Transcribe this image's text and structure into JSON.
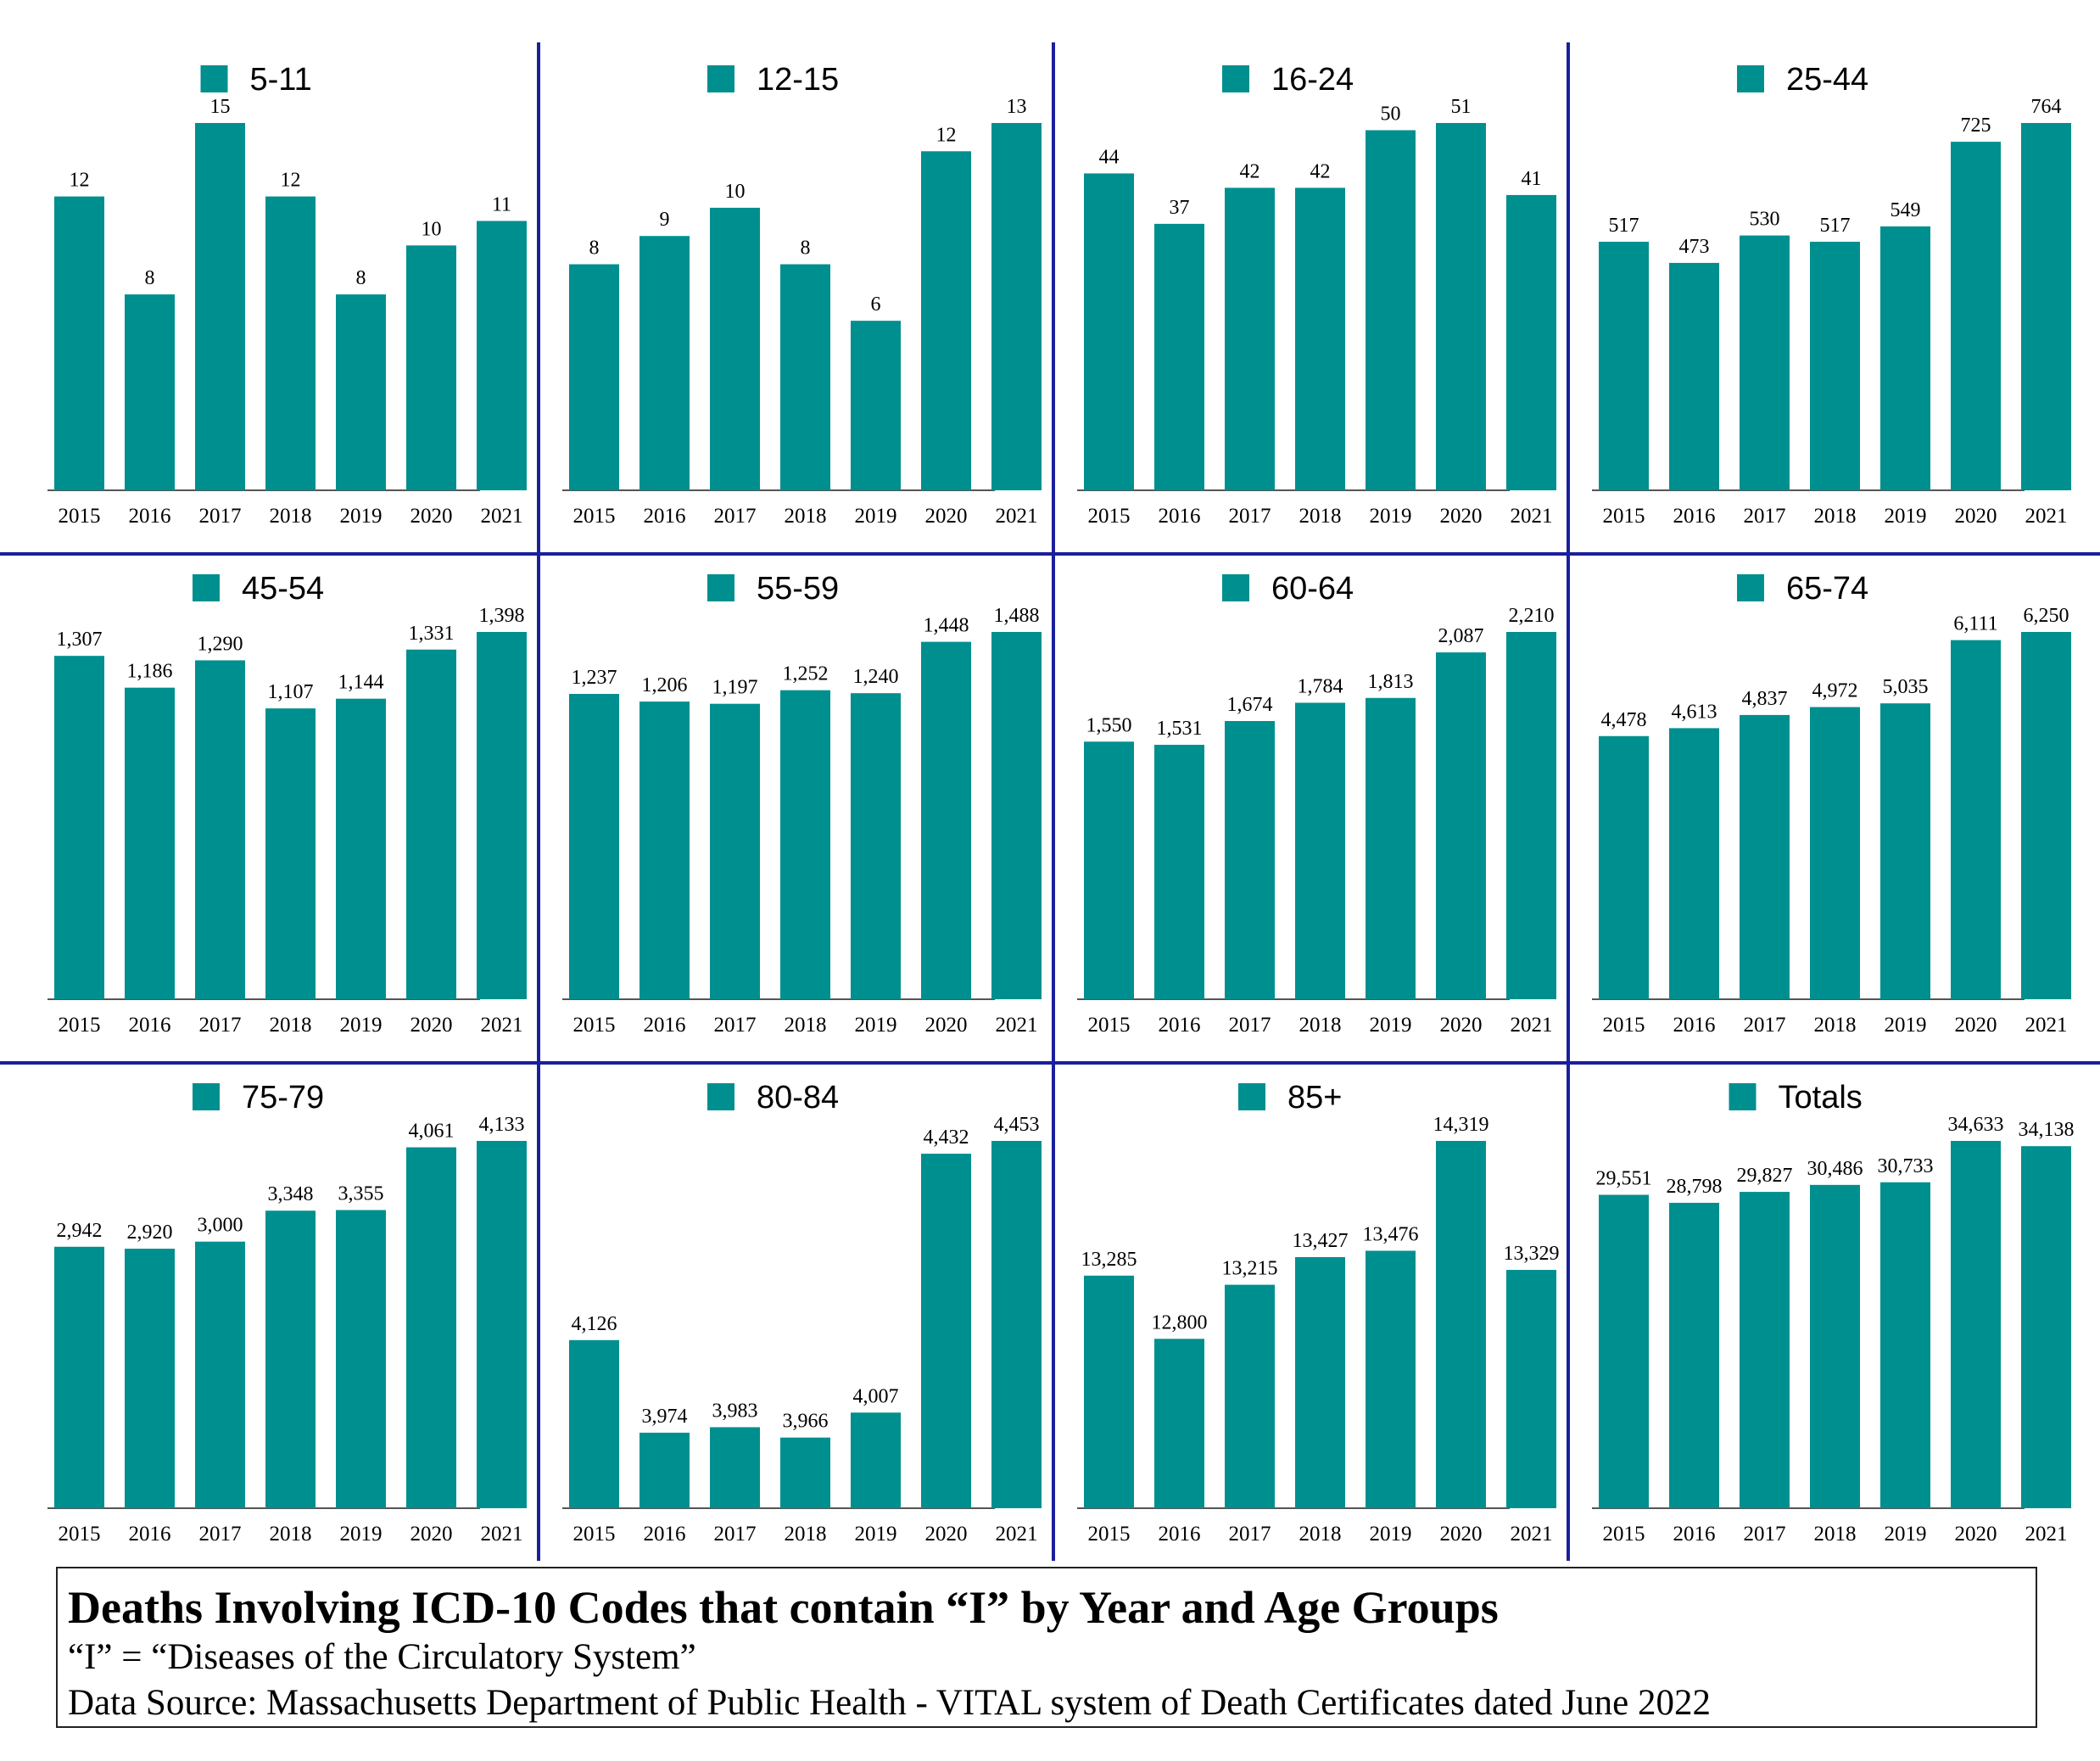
{
  "colors": {
    "bar": "#008f8f",
    "divider": "#1a1f9c",
    "text": "#000000"
  },
  "chart_data": [
    {
      "type": "bar",
      "title": "5-11",
      "legend": "5-11",
      "categories": [
        "2015",
        "2016",
        "2017",
        "2018",
        "2019",
        "2020",
        "2021"
      ],
      "values": [
        12,
        8,
        15,
        12,
        8,
        10,
        11
      ],
      "labels": [
        "12",
        "8",
        "15",
        "12",
        "8",
        "10",
        "11"
      ],
      "ylim": [
        0,
        15
      ]
    },
    {
      "type": "bar",
      "title": "12-15",
      "legend": "12-15",
      "categories": [
        "2015",
        "2016",
        "2017",
        "2018",
        "2019",
        "2020",
        "2021"
      ],
      "values": [
        8,
        9,
        10,
        8,
        6,
        12,
        13
      ],
      "labels": [
        "8",
        "9",
        "10",
        "8",
        "6",
        "12",
        "13"
      ],
      "ylim": [
        0,
        13
      ]
    },
    {
      "type": "bar",
      "title": "16-24",
      "legend": "16-24",
      "categories": [
        "2015",
        "2016",
        "2017",
        "2018",
        "2019",
        "2020",
        "2021"
      ],
      "values": [
        44,
        37,
        42,
        42,
        50,
        51,
        41
      ],
      "labels": [
        "44",
        "37",
        "42",
        "42",
        "50",
        "51",
        "41"
      ],
      "ylim": [
        0,
        51
      ]
    },
    {
      "type": "bar",
      "title": "25-44",
      "legend": "25-44",
      "categories": [
        "2015",
        "2016",
        "2017",
        "2018",
        "2019",
        "2020",
        "2021"
      ],
      "values": [
        517,
        473,
        530,
        517,
        549,
        725,
        764
      ],
      "labels": [
        "517",
        "473",
        "530",
        "517",
        "549",
        "725",
        "764"
      ],
      "ylim": [
        0,
        764
      ]
    },
    {
      "type": "bar",
      "title": "45-54",
      "legend": "45-54",
      "categories": [
        "2015",
        "2016",
        "2017",
        "2018",
        "2019",
        "2020",
        "2021"
      ],
      "values": [
        1307,
        1186,
        1290,
        1107,
        1144,
        1331,
        1398
      ],
      "labels": [
        "1,307",
        "1,186",
        "1,290",
        "1,107",
        "1,144",
        "1,331",
        "1,398"
      ],
      "ylim": [
        0,
        1398
      ]
    },
    {
      "type": "bar",
      "title": "55-59",
      "legend": "55-59",
      "categories": [
        "2015",
        "2016",
        "2017",
        "2018",
        "2019",
        "2020",
        "2021"
      ],
      "values": [
        1237,
        1206,
        1197,
        1252,
        1240,
        1448,
        1488
      ],
      "labels": [
        "1,237",
        "1,206",
        "1,197",
        "1,252",
        "1,240",
        "1,448",
        "1,488"
      ],
      "ylim": [
        0,
        1488
      ]
    },
    {
      "type": "bar",
      "title": "60-64",
      "legend": "60-64",
      "categories": [
        "2015",
        "2016",
        "2017",
        "2018",
        "2019",
        "2020",
        "2021"
      ],
      "values": [
        1550,
        1531,
        1674,
        1784,
        1813,
        2087,
        2210
      ],
      "labels": [
        "1,550",
        "1,531",
        "1,674",
        "1,784",
        "1,813",
        "2,087",
        "2,210"
      ],
      "ylim": [
        0,
        2210
      ]
    },
    {
      "type": "bar",
      "title": "65-74",
      "legend": "65-74",
      "categories": [
        "2015",
        "2016",
        "2017",
        "2018",
        "2019",
        "2020",
        "2021"
      ],
      "values": [
        4478,
        4613,
        4837,
        4972,
        5035,
        6111,
        6250
      ],
      "labels": [
        "4,478",
        "4,613",
        "4,837",
        "4,972",
        "5,035",
        "6,111",
        "6,250"
      ],
      "ylim": [
        0,
        6250
      ]
    },
    {
      "type": "bar",
      "title": "75-79",
      "legend": "75-79",
      "categories": [
        "2015",
        "2016",
        "2017",
        "2018",
        "2019",
        "2020",
        "2021"
      ],
      "values": [
        2942,
        2920,
        3000,
        3348,
        3355,
        4061,
        4133
      ],
      "labels": [
        "2,942",
        "2,920",
        "3,000",
        "3,348",
        "3,355",
        "4,061",
        "4,133"
      ],
      "ylim": [
        0,
        4133
      ]
    },
    {
      "type": "bar",
      "title": "80-84",
      "legend": "80-84",
      "categories": [
        "2015",
        "2016",
        "2017",
        "2018",
        "2019",
        "2020",
        "2021"
      ],
      "values": [
        4126,
        3974,
        3983,
        3966,
        4007,
        4432,
        4453
      ],
      "labels": [
        "4,126",
        "3,974",
        "3,983",
        "3,966",
        "4,007",
        "4,432",
        "4,453"
      ],
      "ylim": [
        3850,
        4453
      ]
    },
    {
      "type": "bar",
      "title": "85+",
      "legend": "85+",
      "categories": [
        "2015",
        "2016",
        "2017",
        "2018",
        "2019",
        "2020",
        "2021"
      ],
      "values": [
        13285,
        12800,
        13215,
        13427,
        13476,
        14319,
        13329
      ],
      "labels": [
        "13,285",
        "12,800",
        "13,215",
        "13,427",
        "13,476",
        "14,319",
        "13,329"
      ],
      "ylim": [
        11500,
        14319
      ]
    },
    {
      "type": "bar",
      "title": "Totals",
      "legend": "Totals",
      "categories": [
        "2015",
        "2016",
        "2017",
        "2018",
        "2019",
        "2020",
        "2021"
      ],
      "values": [
        29551,
        28798,
        29827,
        30486,
        30733,
        34633,
        34138
      ],
      "labels": [
        "29,551",
        "28,798",
        "29,827",
        "30,486",
        "30,733",
        "34,633",
        "34,138"
      ],
      "ylim": [
        0,
        34633
      ]
    }
  ],
  "footer": {
    "title": "Deaths Involving ICD-10 Codes that contain “I” by Year and Age Groups",
    "subtitle": "“I” = “Diseases of the Circulatory System”",
    "source": "Data Source:  Massachusetts Department of Public Health - VITAL system of Death Certificates dated June 2022"
  }
}
